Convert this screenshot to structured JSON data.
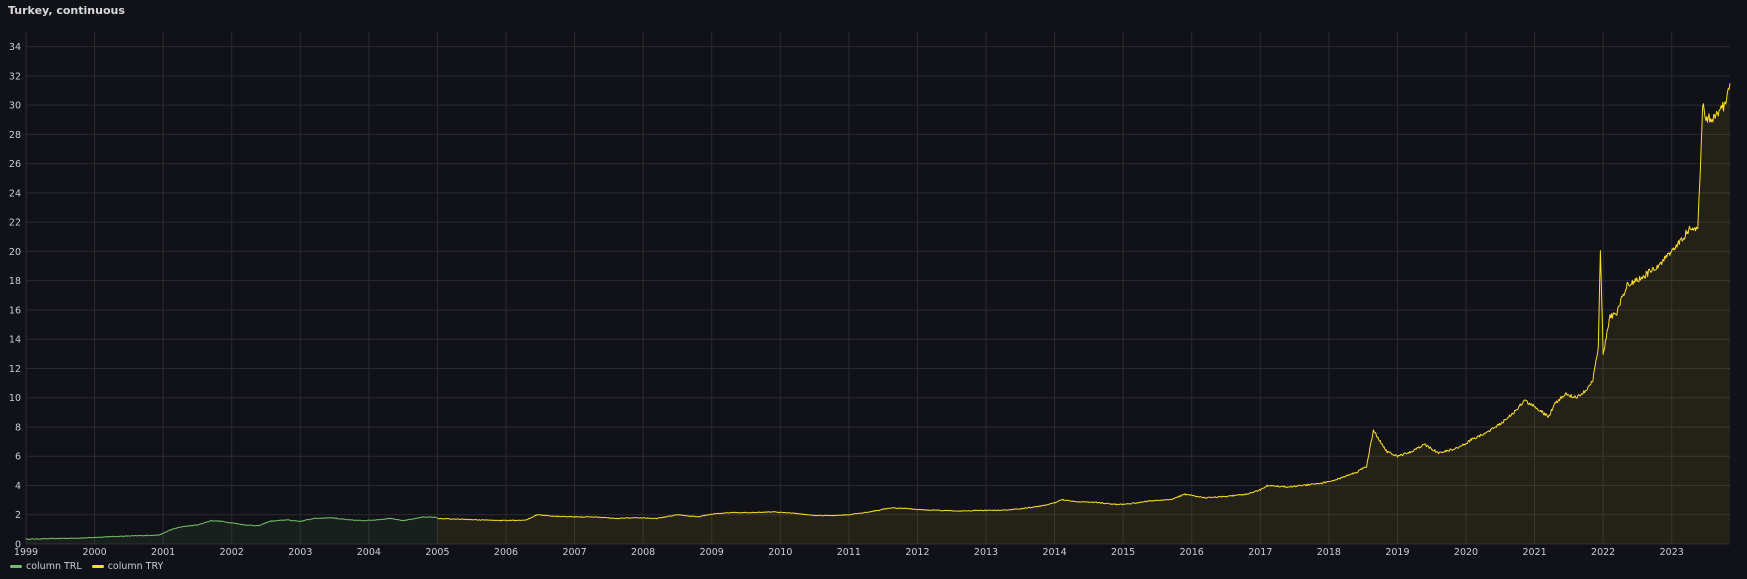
{
  "panel": {
    "title": "Turkey, continuous"
  },
  "colors": {
    "trl": "#73bf69",
    "try": "#fade2a",
    "grid": "#2a2b30",
    "background": "#111217"
  },
  "chart_data": {
    "type": "line",
    "title": "Turkey, continuous",
    "xlabel": "",
    "ylabel": "",
    "xlim": [
      1999.0,
      2023.85
    ],
    "ylim": [
      0,
      35
    ],
    "yticks": [
      0,
      2,
      4,
      6,
      8,
      10,
      12,
      14,
      16,
      18,
      20,
      22,
      24,
      26,
      28,
      30,
      32,
      34
    ],
    "xticks": [
      "1999",
      "2000",
      "2001",
      "2002",
      "2003",
      "2004",
      "2005",
      "2006",
      "2007",
      "2008",
      "2009",
      "2010",
      "2011",
      "2012",
      "2013",
      "2014",
      "2015",
      "2016",
      "2017",
      "2018",
      "2019",
      "2020",
      "2021",
      "2022",
      "2023"
    ],
    "grid": true,
    "legend_position": "bottom-left",
    "series": [
      {
        "name": "column TRL",
        "color": "#73bf69",
        "fill": true,
        "x": [
          1999.0,
          1999.3,
          1999.6,
          1999.9,
          2000.2,
          2000.6,
          2000.95,
          2001.1,
          2001.2,
          2001.3,
          2001.5,
          2001.7,
          2001.85,
          2002.0,
          2002.2,
          2002.4,
          2002.55,
          2002.8,
          2003.0,
          2003.2,
          2003.45,
          2003.7,
          2003.9,
          2004.1,
          2004.3,
          2004.5,
          2004.8,
          2005.0
        ],
        "y": [
          0.33,
          0.36,
          0.39,
          0.42,
          0.5,
          0.56,
          0.62,
          0.95,
          1.1,
          1.2,
          1.3,
          1.6,
          1.55,
          1.45,
          1.3,
          1.25,
          1.55,
          1.65,
          1.55,
          1.75,
          1.8,
          1.65,
          1.6,
          1.65,
          1.75,
          1.6,
          1.85,
          1.82
        ]
      },
      {
        "name": "column TRY",
        "color": "#fade2a",
        "fill": true,
        "x": [
          2005.0,
          2005.3,
          2005.6,
          2006.0,
          2006.3,
          2006.45,
          2006.7,
          2007.0,
          2007.3,
          2007.6,
          2007.9,
          2008.2,
          2008.5,
          2008.8,
          2009.0,
          2009.3,
          2009.6,
          2009.9,
          2010.2,
          2010.5,
          2010.8,
          2011.0,
          2011.3,
          2011.6,
          2011.8,
          2012.0,
          2012.3,
          2012.6,
          2012.9,
          2013.2,
          2013.5,
          2013.8,
          2014.0,
          2014.1,
          2014.3,
          2014.6,
          2014.9,
          2015.1,
          2015.4,
          2015.7,
          2015.9,
          2016.2,
          2016.5,
          2016.8,
          2017.0,
          2017.1,
          2017.4,
          2017.7,
          2017.9,
          2018.2,
          2018.4,
          2018.55,
          2018.65,
          2018.75,
          2018.85,
          2019.0,
          2019.2,
          2019.4,
          2019.6,
          2019.9,
          2020.1,
          2020.3,
          2020.5,
          2020.7,
          2020.85,
          2021.0,
          2021.2,
          2021.3,
          2021.45,
          2021.6,
          2021.75,
          2021.85,
          2021.93,
          2021.96,
          2022.0,
          2022.1,
          2022.2,
          2022.35,
          2022.5,
          2022.65,
          2022.8,
          2022.95,
          2023.1,
          2023.25,
          2023.38,
          2023.42,
          2023.45,
          2023.5,
          2023.6,
          2023.7,
          2023.8,
          2023.85
        ],
        "y": [
          1.75,
          1.7,
          1.65,
          1.6,
          1.65,
          2.0,
          1.9,
          1.85,
          1.85,
          1.75,
          1.8,
          1.75,
          2.0,
          1.85,
          2.05,
          2.15,
          2.15,
          2.2,
          2.1,
          1.95,
          1.95,
          2.0,
          2.2,
          2.45,
          2.45,
          2.35,
          2.3,
          2.25,
          2.3,
          2.3,
          2.4,
          2.6,
          2.8,
          3.05,
          2.9,
          2.85,
          2.7,
          2.75,
          2.95,
          3.05,
          3.4,
          3.15,
          3.25,
          3.4,
          3.7,
          4.0,
          3.9,
          4.05,
          4.15,
          4.55,
          4.9,
          5.3,
          7.8,
          7.0,
          6.3,
          6.0,
          6.3,
          6.8,
          6.2,
          6.6,
          7.2,
          7.6,
          8.2,
          9.0,
          9.8,
          9.4,
          8.7,
          9.6,
          10.3,
          10.0,
          10.5,
          11.2,
          13.5,
          20.0,
          13.0,
          15.5,
          15.8,
          17.8,
          18.0,
          18.5,
          19.0,
          19.8,
          20.5,
          21.5,
          21.5,
          26.0,
          30.0,
          29.0,
          29.2,
          29.5,
          30.3,
          31.5
        ]
      }
    ]
  },
  "legend": {
    "items": [
      "column TRL",
      "column TRY"
    ]
  }
}
